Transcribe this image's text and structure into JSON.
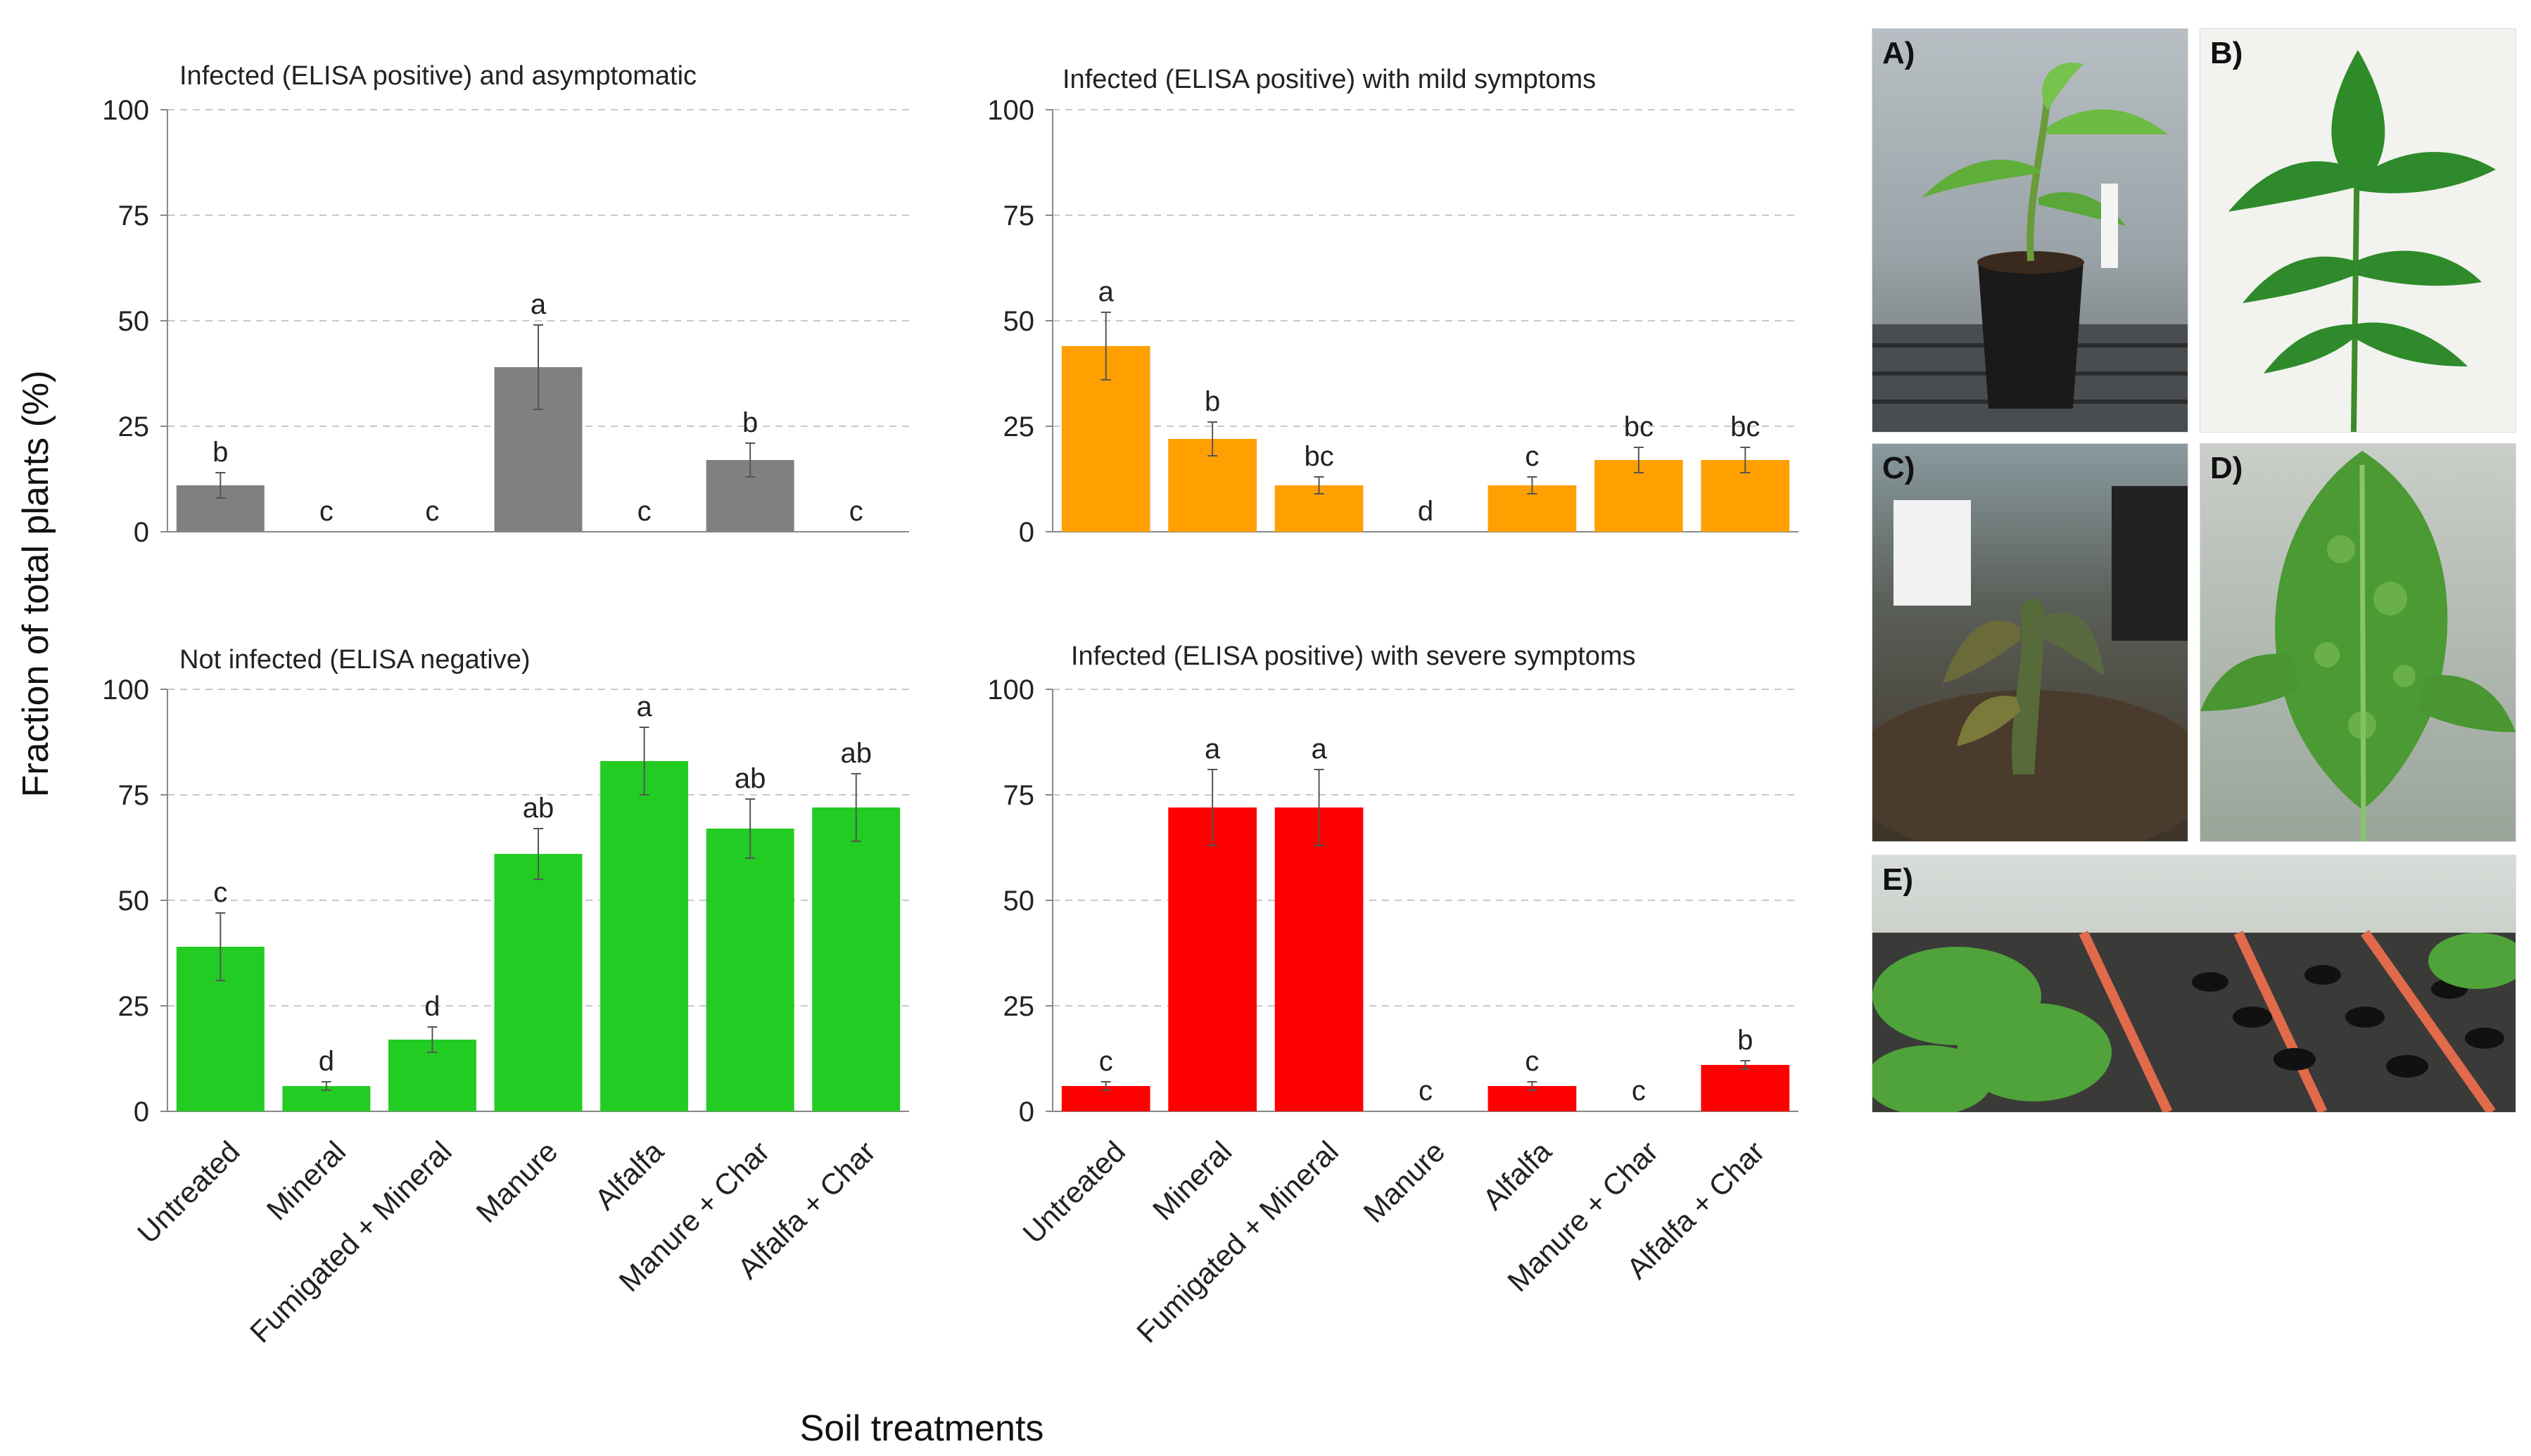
{
  "figure": {
    "y_axis_title": "Fraction of total plants (%)",
    "x_axis_title": "Soil treatments"
  },
  "categories": [
    "Untreated",
    "Mineral",
    "Fumigated + Mineral",
    "Manure",
    "Alfalfa",
    "Manure + Char",
    "Alfalfa + Char"
  ],
  "colors": {
    "gray": "#808080",
    "orange": "#ffa000",
    "green": "#22cc22",
    "red": "#ff0000"
  },
  "chart_data": [
    {
      "type": "bar",
      "title": "Infected (ELISA positive) and asymptomatic",
      "categories": [
        "Untreated",
        "Mineral",
        "Fumigated + Mineral",
        "Manure",
        "Alfalfa",
        "Manure + Char",
        "Alfalfa + Char"
      ],
      "values": [
        11,
        0,
        0,
        39,
        0,
        17,
        0
      ],
      "errors": [
        3,
        0,
        0,
        10,
        0,
        4,
        0
      ],
      "letters": [
        "b",
        "c",
        "c",
        "a",
        "c",
        "b",
        "c"
      ],
      "ylim": [
        0,
        100
      ],
      "yticks": [
        0,
        25,
        50,
        75,
        100
      ],
      "color": "#808080"
    },
    {
      "type": "bar",
      "title": "Infected (ELISA positive) with mild symptoms",
      "categories": [
        "Untreated",
        "Mineral",
        "Fumigated + Mineral",
        "Manure",
        "Alfalfa",
        "Manure + Char",
        "Alfalfa + Char"
      ],
      "values": [
        44,
        22,
        11,
        0,
        11,
        17,
        17
      ],
      "errors": [
        8,
        4,
        2,
        0,
        2,
        3,
        3
      ],
      "letters": [
        "a",
        "b",
        "bc",
        "d",
        "c",
        "bc",
        "bc"
      ],
      "ylim": [
        0,
        100
      ],
      "yticks": [
        0,
        25,
        50,
        75,
        100
      ],
      "color": "#ffa000"
    },
    {
      "type": "bar",
      "title": "Not infected (ELISA negative)",
      "categories": [
        "Untreated",
        "Mineral",
        "Fumigated + Mineral",
        "Manure",
        "Alfalfa",
        "Manure + Char",
        "Alfalfa + Char"
      ],
      "values": [
        39,
        6,
        17,
        61,
        83,
        67,
        72
      ],
      "errors": [
        8,
        1,
        3,
        6,
        8,
        7,
        8
      ],
      "letters": [
        "c",
        "d",
        "d",
        "ab",
        "a",
        "ab",
        "ab"
      ],
      "ylim": [
        0,
        100
      ],
      "yticks": [
        0,
        25,
        50,
        75,
        100
      ],
      "color": "#22cc22"
    },
    {
      "type": "bar",
      "title": "Infected (ELISA positive) with severe symptoms",
      "categories": [
        "Untreated",
        "Mineral",
        "Fumigated + Mineral",
        "Manure",
        "Alfalfa",
        "Manure + Char",
        "Alfalfa + Char"
      ],
      "values": [
        6,
        72,
        72,
        0,
        6,
        0,
        11
      ],
      "errors": [
        1,
        9,
        9,
        0,
        1,
        0,
        1
      ],
      "letters": [
        "c",
        "a",
        "a",
        "c",
        "c",
        "c",
        "b"
      ],
      "ylim": [
        0,
        100
      ],
      "yticks": [
        0,
        25,
        50,
        75,
        100
      ],
      "color": "#ff0000"
    }
  ],
  "photos": [
    {
      "label": "A)",
      "subject": "young-tomato-plant-in-pot"
    },
    {
      "label": "B)",
      "subject": "healthy-tomato-leaf"
    },
    {
      "label": "C)",
      "subject": "severely-wilted-tomato-plant"
    },
    {
      "label": "D)",
      "subject": "mottled-tomato-leaf"
    },
    {
      "label": "E)",
      "subject": "greenhouse-tomato-trays"
    }
  ]
}
